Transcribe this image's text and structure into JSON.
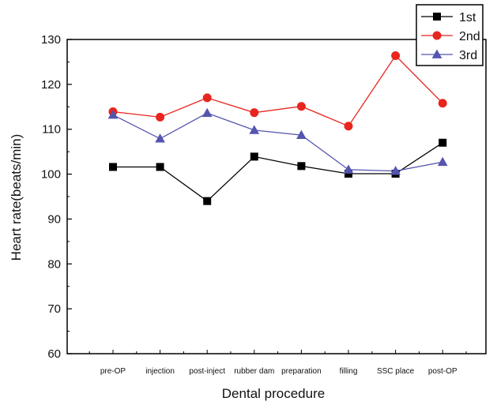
{
  "chart_data": {
    "type": "line",
    "title": "",
    "xlabel": "Dental procedure",
    "ylabel": "Heart rate(beats/min)",
    "ylim": [
      60,
      130
    ],
    "yticks": [
      60,
      70,
      80,
      90,
      100,
      110,
      120,
      130
    ],
    "categories": [
      "pre-OP",
      "injection",
      "post-inject",
      "rubber dam",
      "preparation",
      "filling",
      "SSC place",
      "post-OP"
    ],
    "grid": false,
    "legend_position": "top-right",
    "series": [
      {
        "name": "1st",
        "color": "#000000",
        "marker": "square",
        "values": [
          101.6,
          101.6,
          94.0,
          103.9,
          101.8,
          100.1,
          100.1,
          107.0
        ]
      },
      {
        "name": "2nd",
        "color": "#e8251f",
        "marker": "circle",
        "values": [
          113.9,
          112.7,
          117.0,
          113.7,
          115.1,
          110.7,
          126.4,
          115.8
        ]
      },
      {
        "name": "3rd",
        "color": "#5555b0",
        "marker": "triangle",
        "values": [
          113.2,
          107.9,
          113.6,
          109.8,
          108.7,
          101.0,
          100.7,
          102.7
        ]
      }
    ]
  }
}
